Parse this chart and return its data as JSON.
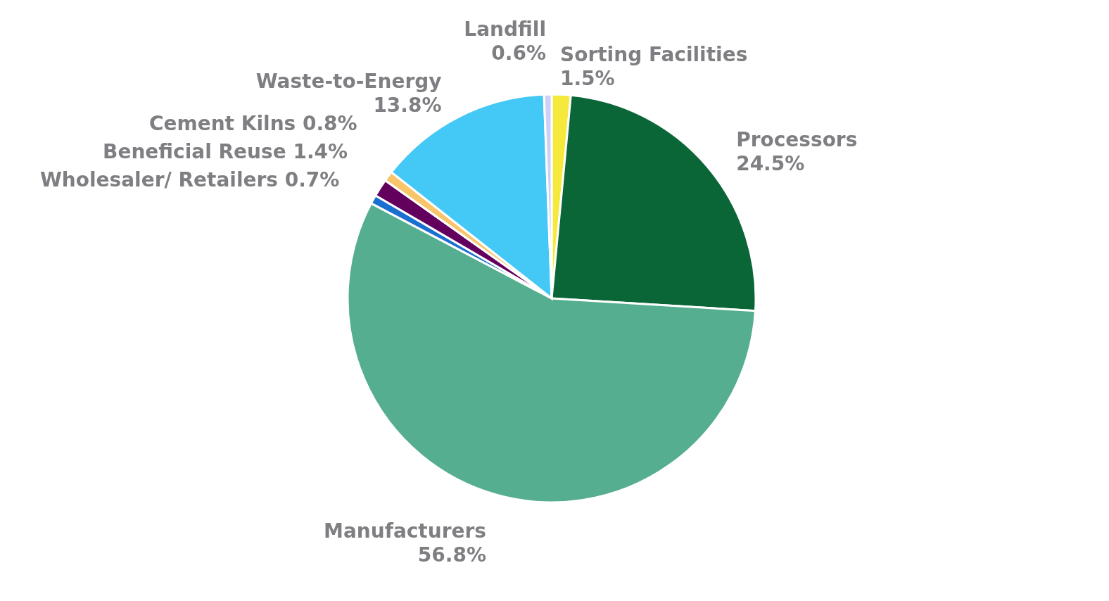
{
  "chart_data": {
    "type": "pie",
    "categories": [
      "Sorting Facilities",
      "Processors",
      "Manufacturers",
      "Wholesaler/ Retailers",
      "Beneficial Reuse",
      "Cement Kilns",
      "Waste-to-Energy",
      "Landfill"
    ],
    "values": [
      1.5,
      24.5,
      56.8,
      0.7,
      1.4,
      0.8,
      13.8,
      0.6
    ],
    "value_labels": [
      "1.5%",
      "24.5%",
      "56.8%",
      "0.7%",
      "1.4%",
      "0.8%",
      "13.8%",
      "0.6%"
    ],
    "colors": [
      "#f5e93c",
      "#0b6637",
      "#55ae8f",
      "#1a6fd0",
      "#63005e",
      "#f9c56a",
      "#44c8f5",
      "#cfcff7"
    ],
    "legend": false
  }
}
